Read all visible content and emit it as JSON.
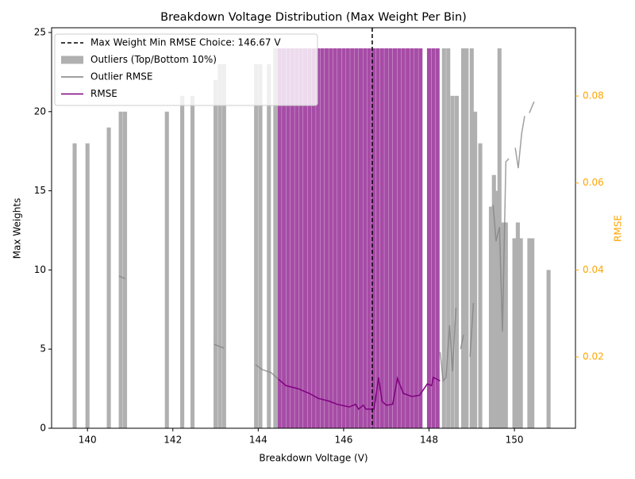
{
  "chart_data": {
    "type": "bar",
    "title": "Breakdown Voltage Distribution (Max Weight Per Bin)",
    "xlabel": "Breakdown Voltage (V)",
    "ylabel": "Max Weights",
    "y2label": "RMSE",
    "xlim": [
      139.16,
      151.43
    ],
    "xticks": [
      140,
      142,
      144,
      146,
      148,
      150
    ],
    "ylim": [
      0,
      25.3
    ],
    "yticks": [
      0,
      5,
      10,
      15,
      20,
      25
    ],
    "y2lim": [
      0.0036,
      0.0957
    ],
    "y2ticks": [
      0.02,
      0.04,
      0.06,
      0.08
    ],
    "y2color": "#ffa500",
    "legend": "upper left",
    "vline": {
      "x": 146.67,
      "label": "Max Weight Min RMSE Choice: 146.67 V",
      "color": "#000000"
    },
    "series": [
      {
        "name": "Outliers (Top/Bottom 10%)",
        "type": "bar",
        "color": "#b0b0b0",
        "x": [
          139.7,
          140.0,
          140.5,
          140.78,
          140.88,
          141.86,
          142.22,
          142.46,
          143.0,
          143.1,
          143.2,
          143.95,
          144.05,
          144.25,
          144.4,
          148.35,
          148.45,
          148.55,
          148.65,
          148.8,
          148.88,
          149.0,
          149.08,
          149.2,
          149.45,
          149.52,
          149.58,
          149.65,
          149.72,
          149.8,
          150.0,
          150.08,
          150.15,
          150.35,
          150.42,
          150.8
        ],
        "values": [
          18,
          18,
          19,
          20,
          20,
          20,
          21,
          21,
          22,
          23,
          23,
          23,
          23,
          23,
          24,
          24,
          24,
          21,
          21,
          24,
          24,
          24,
          20,
          18,
          14,
          16,
          15,
          24,
          13,
          13,
          12,
          13,
          12,
          12,
          12,
          10
        ]
      },
      {
        "type": "bar",
        "color": "#a64ca6",
        "x": [
          144.5,
          144.6,
          144.7,
          144.8,
          144.9,
          145.0,
          145.1,
          145.2,
          145.3,
          145.4,
          145.5,
          145.6,
          145.7,
          145.8,
          145.9,
          146.0,
          146.1,
          146.2,
          146.3,
          146.4,
          146.5,
          146.6,
          146.7,
          146.8,
          146.9,
          147.0,
          147.1,
          147.2,
          147.3,
          147.4,
          147.5,
          147.6,
          147.7,
          147.8,
          148.0,
          148.1,
          148.2
        ],
        "values": [
          24,
          24,
          24,
          24,
          24,
          24,
          24,
          24,
          24,
          24,
          24,
          24,
          24,
          24,
          24,
          24,
          24,
          24,
          24,
          24,
          24,
          24,
          24,
          24,
          24,
          24,
          24,
          24,
          24,
          24,
          24,
          24,
          24,
          24,
          24,
          24,
          24
        ]
      },
      {
        "name": "Outlier RMSE",
        "type": "line",
        "axis": "y2",
        "color": "#808080",
        "x": [
          140.74,
          140.88,
          141.9,
          142.97,
          143.2,
          143.6,
          143.94,
          144.09,
          144.3,
          144.47,
          146.0,
          148.26,
          148.33,
          148.4,
          148.48,
          148.55,
          148.63,
          148.68,
          148.74,
          148.81,
          148.88,
          148.96,
          149.04,
          149.3,
          149.5,
          149.57,
          149.65,
          149.72,
          149.8,
          149.87,
          149.95,
          150.02,
          150.09,
          150.17,
          150.24,
          150.3,
          150.35,
          150.46
        ],
        "values": [
          0.0386,
          0.038,
          null,
          0.0229,
          0.022,
          null,
          0.0182,
          0.0171,
          0.0164,
          0.0149,
          null,
          0.0211,
          0.0145,
          0.0153,
          0.0273,
          0.0167,
          0.0313,
          null,
          0.0218,
          0.0251,
          null,
          0.02,
          0.0324,
          null,
          0.055,
          0.0466,
          0.0499,
          0.0258,
          0.0649,
          0.0656,
          null,
          0.0681,
          0.0634,
          0.0714,
          0.0754,
          null,
          0.0761,
          0.0787
        ]
      },
      {
        "name": "RMSE",
        "type": "line",
        "axis": "y2",
        "color": "#800080",
        "x": [
          144.47,
          144.65,
          144.93,
          145.2,
          145.4,
          145.67,
          145.85,
          146.13,
          146.28,
          146.35,
          146.46,
          146.52,
          146.71,
          146.82,
          146.9,
          147.0,
          147.15,
          147.26,
          147.4,
          147.6,
          147.78,
          147.96,
          148.06,
          148.1,
          148.26
        ],
        "values": [
          0.0149,
          0.0134,
          0.0127,
          0.0116,
          0.0105,
          0.0098,
          0.0091,
          0.0085,
          0.0091,
          0.008,
          0.0089,
          0.008,
          0.008,
          0.0153,
          0.0098,
          0.0089,
          0.0091,
          0.0151,
          0.0116,
          0.0109,
          0.0112,
          0.0138,
          0.0134,
          0.0153,
          0.0145
        ]
      }
    ]
  }
}
